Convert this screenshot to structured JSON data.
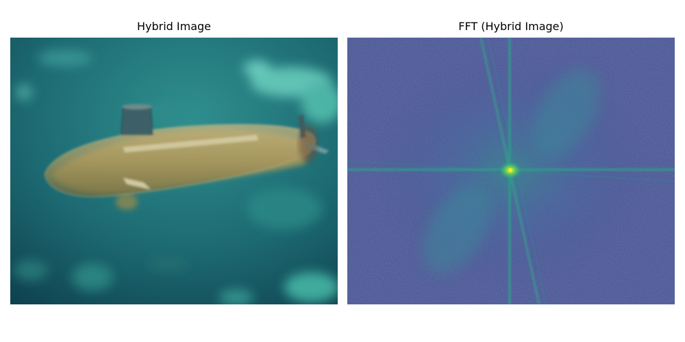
{
  "panels": [
    {
      "title": "Hybrid Image"
    },
    {
      "title": "FFT (Hybrid Image)"
    }
  ]
}
